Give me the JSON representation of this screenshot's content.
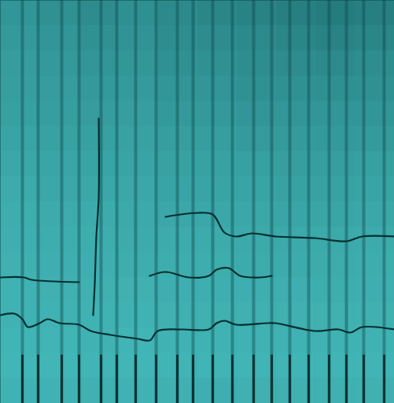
{
  "chart_data": {
    "type": "heatmap",
    "tick_labels": false,
    "xlim": [
      0,
      501
    ],
    "ylim": [
      0,
      512
    ],
    "zlim": [
      0,
      100
    ],
    "cells": [
      [
        50,
        48,
        45,
        47,
        44,
        42,
        40,
        38,
        36,
        38
      ],
      [
        52,
        50,
        48,
        49,
        46,
        45,
        44,
        42,
        40,
        42
      ],
      [
        54,
        52,
        50,
        51,
        48,
        48,
        46,
        45,
        44,
        46
      ],
      [
        55,
        54,
        52,
        53,
        50,
        50,
        48,
        48,
        47,
        48
      ],
      [
        56,
        55,
        54,
        55,
        52,
        52,
        50,
        50,
        50,
        50
      ],
      [
        58,
        57,
        56,
        57,
        55,
        55,
        53,
        53,
        52,
        53
      ],
      [
        60,
        59,
        58,
        58,
        57,
        57,
        56,
        55,
        55,
        56
      ],
      [
        62,
        60,
        60,
        60,
        58,
        58,
        58,
        57,
        57,
        58
      ],
      [
        63,
        62,
        62,
        61,
        60,
        60,
        60,
        59,
        59,
        60
      ],
      [
        64,
        63,
        63,
        62,
        62,
        62,
        61,
        61,
        61,
        62
      ],
      [
        65,
        64,
        64,
        63,
        63,
        63,
        62,
        62,
        62,
        63
      ],
      [
        66,
        65,
        65,
        65,
        64,
        64,
        64,
        64,
        63,
        64
      ],
      [
        66,
        66,
        66,
        66,
        65,
        65,
        65,
        65,
        65,
        65
      ],
      [
        67,
        67,
        66,
        67,
        66,
        66,
        66,
        66,
        66,
        66
      ],
      [
        68,
        68,
        67,
        68,
        67,
        67,
        67,
        67,
        67,
        67
      ],
      [
        66,
        66,
        65,
        66,
        65,
        64,
        65,
        65,
        65,
        65
      ]
    ],
    "onsets": [
      28,
      48,
      78,
      100,
      128,
      148,
      172,
      198,
      225,
      245,
      270,
      295,
      322,
      345,
      368,
      392,
      418,
      440,
      462,
      488
    ],
    "contours": [
      {
        "x": [
          0,
          18,
          28,
          35,
          50,
          60,
          75,
          100,
          115,
          140,
          175,
          190,
          200,
          230,
          265,
          275,
          285,
          300,
          340,
          350,
          400,
          430,
          445,
          460,
          501
        ],
        "y": [
          112,
          114,
          107,
          97,
          102,
          107,
          102,
          100,
          92,
          87,
          82,
          80,
          92,
          94,
          94,
          102,
          105,
          100,
          102,
          102,
          92,
          94,
          90,
          97,
          94
        ]
      },
      {
        "x": [
          0,
          30,
          40,
          100
        ],
        "y": [
          160,
          160,
          157,
          154
        ]
      },
      {
        "x": [
          190,
          210,
          240,
          265,
          275,
          290,
          305,
          330,
          345
        ],
        "y": [
          162,
          167,
          160,
          162,
          170,
          172,
          162,
          160,
          162
        ]
      },
      {
        "x": [
          210,
          250,
          270,
          285,
          300,
          320,
          350,
          400,
          440,
          460,
          501
        ],
        "y": [
          237,
          242,
          240,
          217,
          212,
          216,
          212,
          210,
          206,
          212,
          212
        ]
      },
      {
        "x": [
          118,
          120,
          122,
          125,
          125
        ],
        "y": [
          112,
          152,
          212,
          262,
          362
        ]
      }
    ]
  }
}
